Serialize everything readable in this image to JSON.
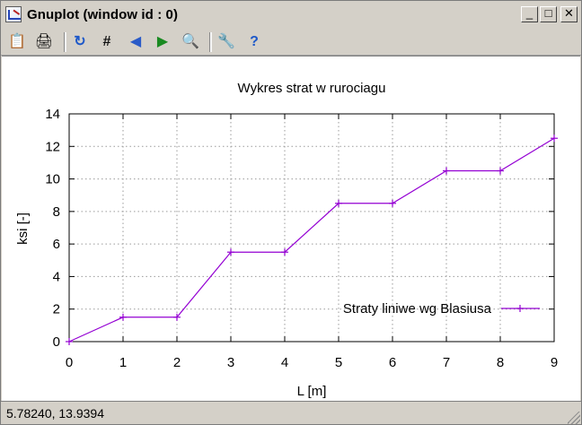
{
  "window": {
    "title": "Gnuplot (window id : 0)",
    "buttons": {
      "minimize": "_",
      "maximize": "□",
      "close": "✕"
    }
  },
  "toolbar": {
    "items": [
      {
        "name": "clipboard-icon",
        "glyph": "📋"
      },
      {
        "name": "print-icon",
        "glyph": "🖨"
      },
      {
        "name": "replot-icon",
        "glyph": "↻"
      },
      {
        "name": "grid-icon",
        "glyph": "#"
      },
      {
        "name": "zoom-previous-icon",
        "glyph": "◀"
      },
      {
        "name": "zoom-next-icon",
        "glyph": "▶"
      },
      {
        "name": "autoscale-icon",
        "glyph": "🔍"
      },
      {
        "name": "options-icon",
        "glyph": "🔧"
      },
      {
        "name": "help-icon",
        "glyph": "?"
      }
    ]
  },
  "chart_data": {
    "type": "line",
    "title": "Wykres strat w rurociagu",
    "xlabel": "L [m]",
    "ylabel": "ksi [-]",
    "xlim": [
      0,
      9
    ],
    "ylim": [
      0,
      14
    ],
    "xticks": [
      "0",
      "1",
      "2",
      "3",
      "4",
      "5",
      "6",
      "7",
      "8",
      "9"
    ],
    "yticks": [
      "0",
      "2",
      "4",
      "6",
      "8",
      "10",
      "12",
      "14"
    ],
    "grid": true,
    "legend_position": "bottom-right",
    "series": [
      {
        "name": "Straty liniwe wg Blasiusa",
        "color": "#9400d3",
        "x": [
          0,
          1,
          2,
          3,
          4,
          5,
          6,
          7,
          8,
          9
        ],
        "y": [
          0,
          1.5,
          1.5,
          5.5,
          5.5,
          8.5,
          8.5,
          10.5,
          10.5,
          12.5
        ]
      }
    ]
  },
  "status": {
    "coordinates": "5.78240,  13.9394"
  }
}
